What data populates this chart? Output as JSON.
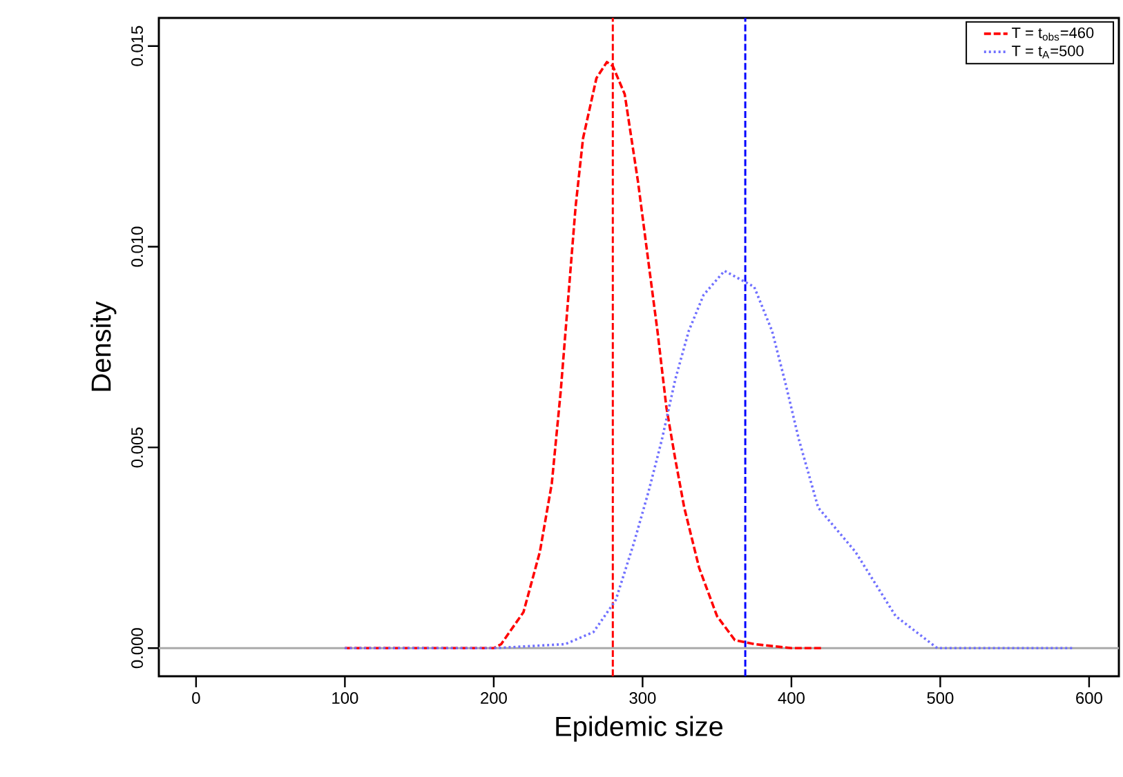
{
  "chart_data": {
    "type": "line",
    "xlabel": "Epidemic size",
    "ylabel": "Density",
    "xlim": [
      -25,
      620
    ],
    "ylim": [
      -0.0007,
      0.0157
    ],
    "xticks": [
      0,
      100,
      200,
      300,
      400,
      500,
      600
    ],
    "yticks": [
      {
        "value": 0,
        "label": "0.000"
      },
      {
        "value": 0.005,
        "label": "0.005"
      },
      {
        "value": 0.01,
        "label": "0.010"
      },
      {
        "value": 0.015,
        "label": "0.015"
      }
    ],
    "legend": "top right",
    "grid": false,
    "marker": "none",
    "series": [
      {
        "name": "T = t$_{obs}$=460",
        "color": "#ff0000",
        "line_style": "dashed",
        "x": [
          100,
          150,
          200,
          205,
          220,
          231,
          239,
          245,
          250,
          255,
          260,
          269,
          276,
          280,
          288,
          297,
          304,
          310,
          316,
          322,
          328,
          338,
          350,
          362,
          375,
          400,
          420
        ],
        "values": [
          0,
          0,
          0,
          0.0001,
          0.0009,
          0.0024,
          0.0041,
          0.0064,
          0.0087,
          0.011,
          0.0127,
          0.0142,
          0.0146,
          0.0145,
          0.0138,
          0.0116,
          0.0096,
          0.0079,
          0.006,
          0.0047,
          0.0035,
          0.002,
          0.0008,
          0.0002,
          0.0001,
          0,
          0
        ]
      },
      {
        "name": "T = t$_{A}$=500",
        "color": "#7070ff",
        "line_style": "dotted",
        "x": [
          100,
          150,
          200,
          248,
          267,
          282,
          294,
          304,
          313,
          322,
          331,
          341,
          355,
          375,
          387,
          396,
          405,
          418,
          443,
          470,
          498,
          550,
          590
        ],
        "values": [
          0,
          0,
          0,
          0.0001,
          0.0004,
          0.0012,
          0.0026,
          0.0039,
          0.0052,
          0.0067,
          0.0079,
          0.0088,
          0.0094,
          0.009,
          0.0079,
          0.0066,
          0.0052,
          0.0035,
          0.0024,
          0.0008,
          0,
          0,
          0
        ]
      }
    ],
    "ref_lines": [
      {
        "axis": "x",
        "value": 280,
        "color": "#ff0000",
        "line_style": "dashed"
      },
      {
        "axis": "x",
        "value": 369,
        "color": "#0000ff",
        "line_style": "dashed"
      },
      {
        "axis": "y",
        "value": 0,
        "color": "#aaaaaa",
        "line_style": "solid"
      }
    ]
  }
}
